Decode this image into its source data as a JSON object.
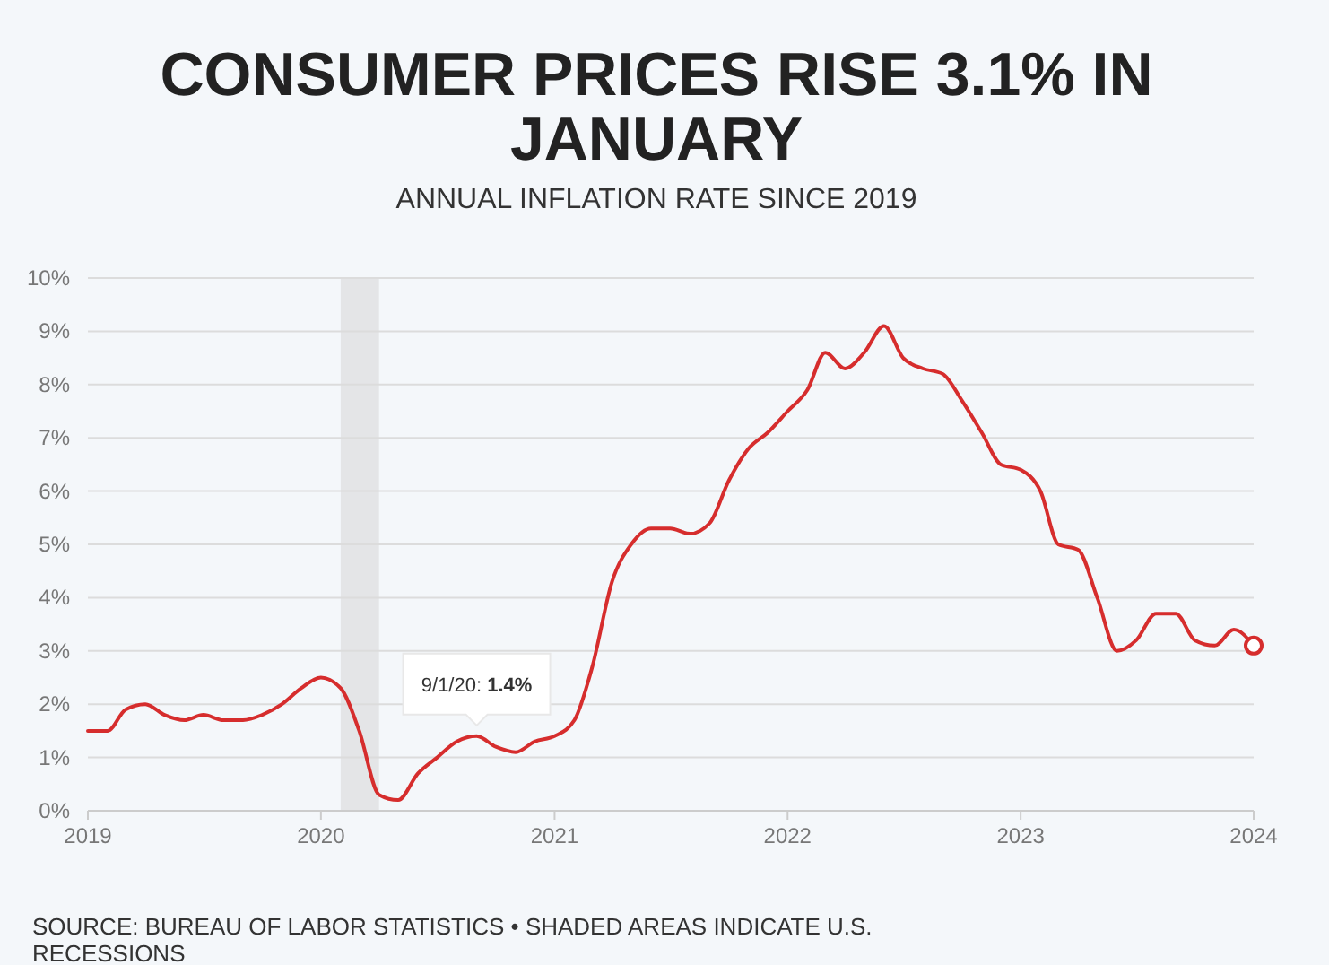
{
  "chart_data": {
    "type": "line",
    "title": "CONSUMER PRICES RISE 3.1% IN JANUARY",
    "subtitle": "ANNUAL INFLATION RATE SINCE 2019",
    "x": [
      "2019-01",
      "2019-02",
      "2019-03",
      "2019-04",
      "2019-05",
      "2019-06",
      "2019-07",
      "2019-08",
      "2019-09",
      "2019-10",
      "2019-11",
      "2019-12",
      "2020-01",
      "2020-02",
      "2020-03",
      "2020-04",
      "2020-05",
      "2020-06",
      "2020-07",
      "2020-08",
      "2020-09",
      "2020-10",
      "2020-11",
      "2020-12",
      "2021-01",
      "2021-02",
      "2021-03",
      "2021-04",
      "2021-05",
      "2021-06",
      "2021-07",
      "2021-08",
      "2021-09",
      "2021-10",
      "2021-11",
      "2021-12",
      "2022-01",
      "2022-02",
      "2022-03",
      "2022-04",
      "2022-05",
      "2022-06",
      "2022-07",
      "2022-08",
      "2022-09",
      "2022-10",
      "2022-11",
      "2022-12",
      "2023-01",
      "2023-02",
      "2023-03",
      "2023-04",
      "2023-05",
      "2023-06",
      "2023-07",
      "2023-08",
      "2023-09",
      "2023-10",
      "2023-11",
      "2023-12",
      "2024-01"
    ],
    "series": [
      {
        "color": "#d62d2d",
        "values": [
          1.5,
          1.5,
          1.9,
          2.0,
          1.8,
          1.7,
          1.8,
          1.7,
          1.7,
          1.8,
          2.0,
          2.3,
          2.5,
          2.3,
          1.5,
          0.3,
          0.2,
          0.7,
          1.0,
          1.3,
          1.4,
          1.2,
          1.1,
          1.3,
          1.4,
          1.7,
          2.7,
          4.3,
          5.0,
          5.3,
          5.3,
          5.2,
          5.4,
          6.2,
          6.8,
          7.1,
          7.5,
          7.9,
          8.6,
          8.3,
          8.6,
          9.1,
          8.5,
          8.3,
          8.2,
          7.7,
          7.1,
          6.5,
          6.4,
          6.0,
          5.0,
          4.9,
          4.0,
          3.0,
          3.2,
          3.7,
          3.7,
          3.2,
          3.1,
          3.4,
          3.1
        ]
      },
      {
        "type": "scatter",
        "color": "#d62d2d",
        "marker": "circle",
        "x": [
          "2024-01"
        ],
        "values": [
          3.1
        ]
      }
    ],
    "xlim": [
      "2019-01",
      "2024-01"
    ],
    "xticks": [
      "2019",
      "2020",
      "2021",
      "2022",
      "2023",
      "2024"
    ],
    "ylim": [
      0,
      10
    ],
    "yticks": [
      {
        "value": 0,
        "label": "0%"
      },
      {
        "value": 1,
        "label": "1%"
      },
      {
        "value": 2,
        "label": "2%"
      },
      {
        "value": 3,
        "label": "3%"
      },
      {
        "value": 4,
        "label": "4%"
      },
      {
        "value": 5,
        "label": "5%"
      },
      {
        "value": 6,
        "label": "6%"
      },
      {
        "value": 7,
        "label": "7%"
      },
      {
        "value": 8,
        "label": "8%"
      },
      {
        "value": 9,
        "label": "9%"
      },
      {
        "value": 10,
        "label": "10%"
      }
    ],
    "grid": "y",
    "marker": "none",
    "line_style": "solid",
    "bands": [
      {
        "axis": "x",
        "from": "2020-02",
        "to": "2020-04",
        "color": "#e4e5e7"
      }
    ],
    "annotations": [
      {
        "text": "9/1/20: 1.4%",
        "x": "2020-09-01",
        "y": 1.4
      },
      "SOURCE: BUREAU OF LABOR STATISTICS • SHADED AREAS INDICATE U.S. RECESSIONS"
    ]
  }
}
